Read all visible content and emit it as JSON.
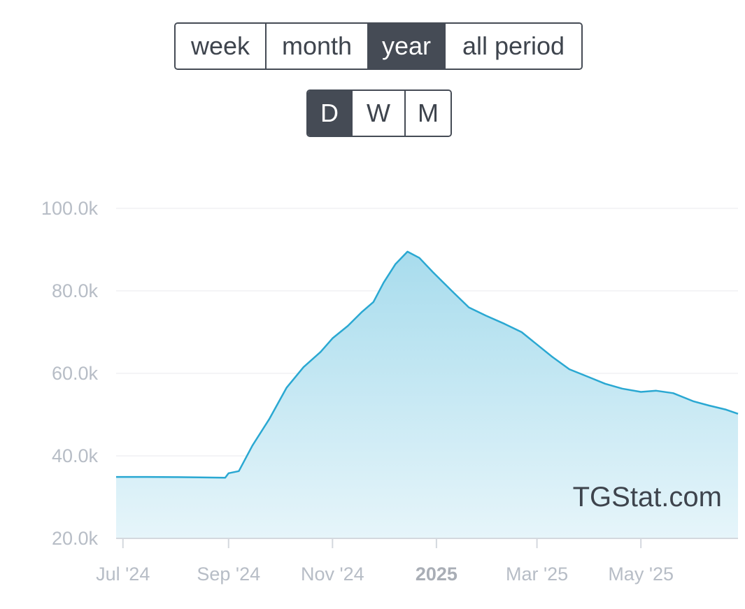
{
  "period_buttons": [
    {
      "label": "week",
      "active": false
    },
    {
      "label": "month",
      "active": false
    },
    {
      "label": "year",
      "active": true
    },
    {
      "label": "all period",
      "active": false
    }
  ],
  "granularity_buttons": [
    {
      "label": "D",
      "active": true
    },
    {
      "label": "W",
      "active": false
    },
    {
      "label": "M",
      "active": false
    }
  ],
  "watermark": "TGStat.com",
  "colors": {
    "line": "#2aa8d2",
    "fill_top": "#a8dced",
    "fill_bottom": "#e6f5fa",
    "button_active": "#454b55"
  },
  "chart_data": {
    "type": "area",
    "x_ticks": [
      {
        "date": "2024-07-01",
        "label": "Jul '24",
        "bold": false
      },
      {
        "date": "2024-09-01",
        "label": "Sep '24",
        "bold": false
      },
      {
        "date": "2024-11-01",
        "label": "Nov '24",
        "bold": false
      },
      {
        "date": "2025-01-01",
        "label": "2025",
        "bold": true
      },
      {
        "date": "2025-03-01",
        "label": "Mar '25",
        "bold": false
      },
      {
        "date": "2025-05-01",
        "label": "May '25",
        "bold": false
      }
    ],
    "y_ticks": [
      "20.0k",
      "40.0k",
      "60.0k",
      "80.0k",
      "100.0k"
    ],
    "ylim": [
      20000,
      100000
    ],
    "xlim": [
      "2024-06-27",
      "2025-06-27"
    ],
    "grid": true,
    "series": [
      {
        "x": [
          "2024-06-27",
          "2024-07-15",
          "2024-08-01",
          "2024-08-15",
          "2024-08-30",
          "2024-09-01",
          "2024-09-07",
          "2024-09-15",
          "2024-09-25",
          "2024-10-05",
          "2024-10-15",
          "2024-10-25",
          "2024-11-01",
          "2024-11-10",
          "2024-11-18",
          "2024-11-25",
          "2024-12-01",
          "2024-12-08",
          "2024-12-15",
          "2024-12-22",
          "2024-12-30",
          "2025-01-10",
          "2025-01-20",
          "2025-01-30",
          "2025-02-10",
          "2025-02-20",
          "2025-03-01",
          "2025-03-10",
          "2025-03-20",
          "2025-04-01",
          "2025-04-10",
          "2025-04-20",
          "2025-05-01",
          "2025-05-10",
          "2025-05-20",
          "2025-06-01",
          "2025-06-10",
          "2025-06-20",
          "2025-06-27"
        ],
        "values": [
          34900,
          34900,
          34850,
          34800,
          34700,
          35800,
          36300,
          42500,
          49000,
          56500,
          61500,
          65200,
          68500,
          71500,
          74800,
          77300,
          82000,
          86500,
          89500,
          88000,
          84500,
          80000,
          76000,
          74000,
          72000,
          70000,
          67000,
          64000,
          61000,
          59000,
          57500,
          56300,
          55500,
          55800,
          55200,
          53200,
          52200,
          51200,
          50200
        ]
      }
    ]
  }
}
